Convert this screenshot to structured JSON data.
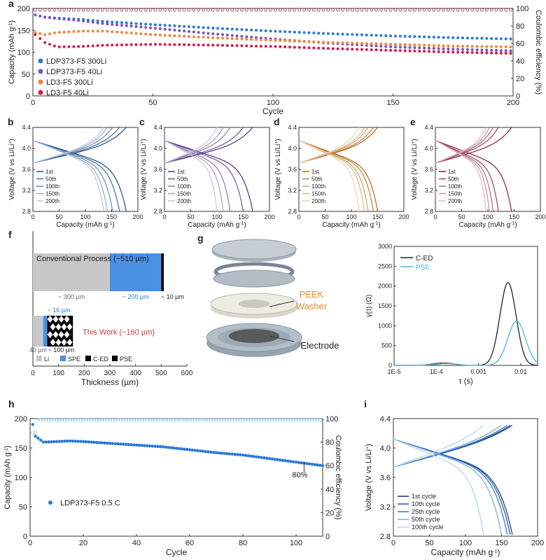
{
  "panels": {
    "a": {
      "letter": "a",
      "type": "scatter",
      "xlabel": "Cycle",
      "ylabel": "Capacity (mAh g",
      "ylabel2": "Coulombic efficiency (%)",
      "xlim": [
        0,
        200
      ],
      "ylim": [
        0,
        200
      ],
      "y2lim": [
        0,
        100
      ],
      "xticks": [
        "0",
        "50",
        "100",
        "150",
        "200"
      ],
      "yticks": [
        "0",
        "50",
        "100",
        "150",
        "200"
      ],
      "y2ticks": [
        "0",
        "20",
        "40",
        "60",
        "80",
        "100"
      ],
      "legend_position": "bottom-left",
      "series": [
        {
          "name": "LDP373-F5 300Li",
          "color": "#2a7ad6",
          "x": [
            1,
            5,
            10,
            20,
            30,
            50,
            75,
            100,
            125,
            150,
            175,
            200
          ],
          "y": [
            185,
            180,
            178,
            175,
            170,
            163,
            155,
            148,
            142,
            137,
            133,
            130
          ]
        },
        {
          "name": "LDP373-F5 40Li",
          "color": "#7a52c8",
          "x": [
            1,
            5,
            10,
            20,
            30,
            50,
            75,
            100,
            125,
            150,
            175,
            200
          ],
          "y": [
            185,
            180,
            177,
            172,
            165,
            155,
            142,
            130,
            120,
            112,
            107,
            103
          ]
        },
        {
          "name": "LD3-F5 300Li",
          "color": "#f0883a",
          "x": [
            1,
            5,
            10,
            20,
            30,
            50,
            75,
            100,
            125,
            150,
            175,
            200
          ],
          "y": [
            145,
            140,
            145,
            148,
            148,
            140,
            133,
            127,
            122,
            118,
            114,
            112
          ]
        },
        {
          "name": "LD3-F5 40Li",
          "color": "#d81b4a",
          "x": [
            1,
            5,
            10,
            20,
            30,
            50,
            75,
            100,
            125,
            150,
            175,
            200
          ],
          "y": [
            140,
            122,
            112,
            113,
            116,
            118,
            116,
            113,
            108,
            104,
            100,
            97
          ]
        }
      ],
      "ce_y": 98
    },
    "b": {
      "letter": "b",
      "color": "#1f4e89",
      "labels": [
        "1st",
        "50th",
        "100th",
        "150th",
        "200th"
      ],
      "caps": [
        178,
        165,
        152,
        142,
        135
      ],
      "xlabel": "Capacity (mAh g",
      "ylabel": "Voltage (V vs Li/Li",
      "xticks": [
        "0",
        "50",
        "100",
        "150",
        "200"
      ],
      "yticks": [
        "2.8",
        "3.2",
        "3.6",
        "4.0",
        "4.4"
      ],
      "xlim": [
        0,
        200
      ],
      "ylim": [
        2.8,
        4.4
      ]
    },
    "c": {
      "letter": "c",
      "color": "#4b3480",
      "labels": [
        "1st",
        "50th",
        "100th",
        "150th",
        "200th"
      ],
      "caps": [
        168,
        150,
        125,
        112,
        100
      ],
      "xlabel": "Capacity (mAh g",
      "ylabel": "Voltage (V vs Li/Li",
      "xticks": [
        "0",
        "50",
        "100",
        "150",
        "200"
      ],
      "yticks": [
        "2.8",
        "3.2",
        "3.6",
        "4.0",
        "4.4"
      ],
      "xlim": [
        0,
        200
      ],
      "ylim": [
        2.8,
        4.4
      ]
    },
    "d": {
      "letter": "d",
      "color": "#b8680f",
      "labels": [
        "1st",
        "50th",
        "100th",
        "150th",
        "200th"
      ],
      "caps": [
        150,
        142,
        132,
        125,
        115
      ],
      "xlabel": "Capacity (mAh g",
      "ylabel": "Voltage (V vs Li/Li",
      "xticks": [
        "0",
        "50",
        "100",
        "150",
        "200"
      ],
      "yticks": [
        "2.8",
        "3.2",
        "3.6",
        "4.0",
        "4.4"
      ],
      "xlim": [
        0,
        200
      ],
      "ylim": [
        2.8,
        4.4
      ]
    },
    "e": {
      "letter": "e",
      "color": "#8b1a3a",
      "labels": [
        "1st",
        "50th",
        "100th",
        "150th",
        "200th"
      ],
      "caps": [
        145,
        120,
        110,
        103,
        97
      ],
      "xlabel": "Capacity (mAh g",
      "ylabel": "Voltage (V vs Li/Li",
      "xticks": [
        "0",
        "50",
        "100",
        "150",
        "200"
      ],
      "yticks": [
        "2.8",
        "3.2",
        "3.6",
        "4.0",
        "4.4"
      ],
      "xlim": [
        0,
        200
      ],
      "ylim": [
        2.8,
        4.4
      ]
    },
    "f": {
      "letter": "f",
      "type": "bar",
      "conventional_title": "Conventional Process (~510 µm)",
      "this_work": "This Work (~160 µm)",
      "conv_segments": [
        {
          "name": "Li",
          "value": 300,
          "label": "~ 300 µm",
          "color": "#c8c8c8"
        },
        {
          "name": "SPE",
          "value": 200,
          "label": "~ 200 µm",
          "color": "#4a90e2"
        },
        {
          "name": "C-ED",
          "value": 10,
          "label": "~ 10 µm",
          "color": "#000000"
        }
      ],
      "work_segments": [
        {
          "name": "Li",
          "value": 40,
          "label": "40 µm",
          "color": "#c8c8c8"
        },
        {
          "name": "SPE",
          "value": 16,
          "label": "~ 16 µm",
          "color": "#4a90e2"
        },
        {
          "name": "PSE",
          "value": 100,
          "label": "~ 100 µm",
          "color": "#000000"
        }
      ],
      "xlabel": "Thickness (µm)",
      "xticks": [
        "0",
        "100",
        "200",
        "300",
        "400",
        "500",
        "600"
      ],
      "xlim": [
        0,
        600
      ],
      "legend": [
        "Li",
        "SPE",
        "C-ED",
        "PSE"
      ]
    },
    "g": {
      "letter": "g",
      "washer_label": "PEEK",
      "washer_label2": "Washer",
      "electrode_label": "Electrode"
    },
    "g2": {
      "type": "line",
      "xlabel": "τ (s)",
      "ylabel": "γ(τ) (Ω)",
      "xticks": [
        "1E-5",
        "1E-4",
        "0.001",
        "0.01"
      ],
      "yticks": [
        "0",
        "500",
        "1000",
        "1500",
        "2000",
        "2500",
        "3000"
      ],
      "ylim": [
        0,
        3000
      ],
      "series": [
        {
          "name": "C-ED",
          "color": "#222222",
          "peak_tau": 0.005,
          "peak": 2090,
          "width": 0.19,
          "small_tau": 0.00015,
          "small_peak": 60
        },
        {
          "name": "PSE",
          "color": "#4cb3e0",
          "peak_tau": 0.008,
          "peak": 1120,
          "width": 0.21,
          "small_tau": 0.00017,
          "small_peak": 45
        }
      ]
    },
    "h": {
      "letter": "h",
      "type": "scatter",
      "xlabel": "Cycle",
      "ylabel": "Capacity (mAh g",
      "ylabel2": "Coulombic efficiency (%)",
      "xlim": [
        0,
        110
      ],
      "ylim": [
        0,
        200
      ],
      "y2lim": [
        0,
        100
      ],
      "xticks": [
        "0",
        "20",
        "40",
        "60",
        "80",
        "100"
      ],
      "yticks": [
        "0",
        "50",
        "100",
        "150",
        "200"
      ],
      "y2ticks": [
        "0",
        "20",
        "40",
        "60",
        "80",
        "100"
      ],
      "series_name": "LDP373-F5 0.5 C",
      "color": "#2a7ad6",
      "x": [
        1,
        2,
        5,
        10,
        15,
        20,
        30,
        40,
        50,
        60,
        70,
        80,
        90,
        100,
        110
      ],
      "y": [
        190,
        170,
        160,
        161,
        162,
        161,
        158,
        155,
        152,
        147,
        142,
        138,
        132,
        126,
        120
      ],
      "annotation": "80%",
      "annotation_x": 103
    },
    "i": {
      "letter": "i",
      "type": "line",
      "xlabel": "Capacity (mAh g",
      "ylabel": "Voltage (V vs Li/Li",
      "xticks": [
        "0",
        "50",
        "100",
        "150",
        "200"
      ],
      "yticks": [
        "2.8",
        "3.2",
        "3.6",
        "4.0",
        "4.4"
      ],
      "xlim": [
        0,
        200
      ],
      "ylim": [
        2.8,
        4.4
      ],
      "labels": [
        "1st cycle",
        "10th cycle",
        "25th cycle",
        "50th cycle",
        "100th cycle"
      ],
      "colors": [
        "#1b3f7a",
        "#2f5fa8",
        "#3f7fc4",
        "#7fb0de",
        "#b7d6f0"
      ],
      "caps": [
        165,
        162,
        158,
        150,
        125
      ]
    }
  }
}
